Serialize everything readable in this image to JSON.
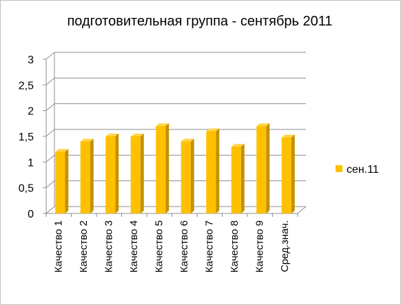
{
  "chart_data": {
    "type": "bar",
    "title": "подготовительная группа - сентябрь 2011",
    "categories": [
      "Качество 1",
      "Качество 2",
      "Качество 3",
      "Качество 4",
      "Качество 5",
      "Качество 6",
      "Качество 7",
      "Качество 8",
      "Качество 9",
      "Сред.знач."
    ],
    "series": [
      {
        "name": "сен.11",
        "values": [
          1.2,
          1.4,
          1.5,
          1.5,
          1.7,
          1.4,
          1.6,
          1.3,
          1.7,
          1.48
        ],
        "color": "#ffc000"
      }
    ],
    "yticks": [
      "0",
      "0,5",
      "1",
      "1,5",
      "2",
      "2,5",
      "3"
    ],
    "ylim": [
      0,
      3
    ],
    "grid": true,
    "legend_position": "right",
    "style": "3d-bar"
  }
}
